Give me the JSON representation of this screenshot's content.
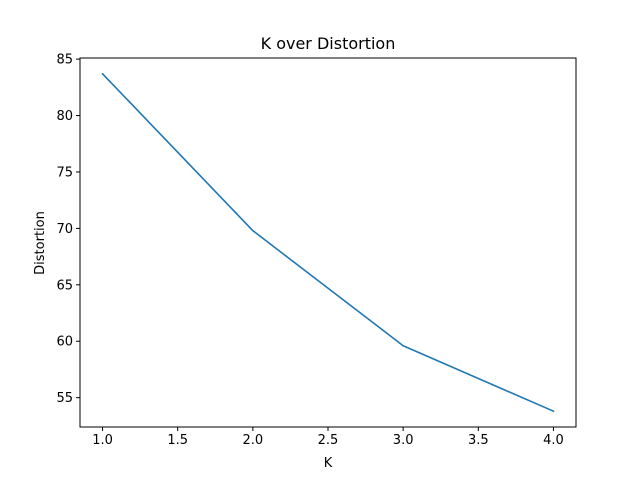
{
  "chart_data": {
    "type": "line",
    "title": "K over Distortion",
    "xlabel": "K",
    "ylabel": "Distortion",
    "xlim": [
      0.85,
      4.15
    ],
    "ylim": [
      52.4,
      85.1
    ],
    "x_ticks": [
      1.0,
      1.5,
      2.0,
      2.5,
      3.0,
      3.5,
      4.0
    ],
    "x_tick_labels": [
      "1.0",
      "1.5",
      "2.0",
      "2.5",
      "3.0",
      "3.5",
      "4.0"
    ],
    "y_ticks": [
      55,
      60,
      65,
      70,
      75,
      80,
      85
    ],
    "y_tick_labels": [
      "55",
      "60",
      "65",
      "70",
      "75",
      "80",
      "85"
    ],
    "grid": false,
    "series": [
      {
        "name": "Distortion",
        "color": "#1f77b4",
        "x": [
          1,
          2,
          3,
          4
        ],
        "y": [
          83.7,
          69.8,
          59.6,
          53.8
        ]
      }
    ]
  }
}
